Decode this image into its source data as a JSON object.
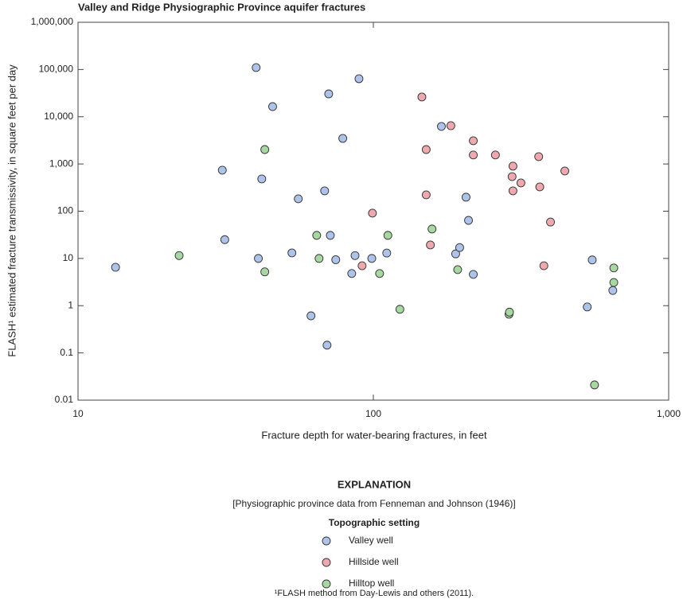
{
  "chart_data": {
    "type": "scatter",
    "title": "Valley and Ridge Physiographic Province aquifer fractures",
    "x_label": "Fracture depth for water-bearing fractures, in feet",
    "y_label": "FLASH¹ estimated fracture transmissivity, in square feet per day",
    "x_log": true,
    "y_log": true,
    "xlim": [
      10,
      1000
    ],
    "xticks": [
      10,
      100,
      {
        "value": 1000,
        "label": "1,000"
      }
    ],
    "ylim": [
      0.01,
      1000000
    ],
    "yticks": [
      0.01,
      0.1,
      1,
      10,
      100,
      {
        "value": 1000,
        "label": "1,000"
      },
      {
        "value": 10000,
        "label": "10,000"
      },
      {
        "value": 100000,
        "label": "100,000"
      },
      {
        "value": 1000000,
        "label": "1,000,000"
      }
    ],
    "legend_title": "EXPLANATION",
    "legend_note": "[Physiographic province data from Fenneman and Johnson (1946)]",
    "legend_subtitle": "Topographic setting",
    "footnote": "¹FLASH method from Day-Lewis and others (2011).",
    "series": [
      {
        "name": "Valley well",
        "color": "#adc3ea",
        "x": [
          40.1,
          89.4,
          70.6,
          45.6,
          78.8,
          170,
          30.8,
          41.9,
          55.7,
          68.4,
          206,
          210,
          31.4,
          71.5,
          40.8,
          53,
          74.6,
          86.7,
          98.8,
          111,
          84.5,
          190,
          196,
          218,
          551,
          530,
          647,
          61.5,
          69.7,
          13.4
        ],
        "values": [
          110000,
          63800,
          30500,
          16400,
          3480,
          6240,
          740,
          483,
          183,
          270,
          198,
          64,
          25,
          30.8,
          10,
          13.1,
          9.4,
          11.5,
          10,
          13,
          4.8,
          12.5,
          17,
          4.6,
          9.3,
          0.94,
          2.1,
          0.61,
          0.146,
          6.5
        ]
      },
      {
        "name": "Hillside well",
        "color": "#eda9ae",
        "x": [
          146,
          183,
          218,
          151,
          218,
          259,
          297,
          295,
          316,
          363,
          445,
          366,
          297,
          151,
          99.3,
          156,
          398,
          378,
          91.6
        ],
        "values": [
          26200,
          6470,
          3100,
          2020,
          1550,
          1550,
          900,
          540,
          397,
          1430,
          711,
          327,
          270,
          222,
          91,
          19.3,
          59,
          7,
          7
        ]
      },
      {
        "name": "Hilltop well",
        "color": "#a8d8a2",
        "x": [
          42.9,
          22,
          42.9,
          64.3,
          65.5,
          112,
          105,
          158,
          193,
          123,
          288,
          289,
          652,
          652,
          561
        ],
        "values": [
          2020,
          11.5,
          5.2,
          30.8,
          10,
          30.8,
          4.8,
          42,
          5.8,
          0.84,
          0.66,
          0.73,
          6.3,
          3.1,
          0.021
        ]
      }
    ]
  }
}
